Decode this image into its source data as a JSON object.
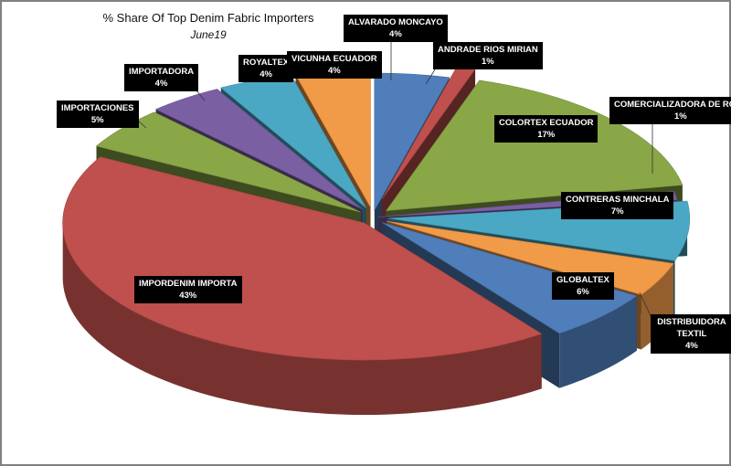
{
  "chart_data": {
    "type": "pie",
    "title": "% Share Of Top Denim Fabric Importers",
    "subtitle": "June19",
    "slices": [
      {
        "name": "ALVARADO MONCAYO",
        "value": 4,
        "label": "4%",
        "color": "#4f7ebb"
      },
      {
        "name": "ANDRADE RIOS MIRIAN",
        "value": 1,
        "label": "1%",
        "color": "#c0504d"
      },
      {
        "name": "COLORTEX ECUADOR",
        "value": 17,
        "label": "17%",
        "color": "#8aa748"
      },
      {
        "name": "COMERCIALIZADORA DE ROPA",
        "value": 1,
        "label": "1%",
        "color": "#7b5fa3"
      },
      {
        "name": "CONTRERAS MINCHALA",
        "value": 7,
        "label": "7%",
        "color": "#4aa8c4"
      },
      {
        "name": "DISTRIBUIDORA TEXTIL",
        "value": 4,
        "label": "4%",
        "color": "#f19a48"
      },
      {
        "name": "GLOBALTEX",
        "value": 6,
        "label": "6%",
        "color": "#4f7ebb"
      },
      {
        "name": "IMPORDENIM IMPORTA",
        "value": 43,
        "label": "43%",
        "color": "#c0504d"
      },
      {
        "name": "IMPORTACIONES",
        "value": 5,
        "label": "5%",
        "color": "#8aa748"
      },
      {
        "name": "IMPORTADORA",
        "value": 4,
        "label": "4%",
        "color": "#7b5fa3"
      },
      {
        "name": "ROYALTEX",
        "value": 4,
        "label": "4%",
        "color": "#4aa8c4"
      },
      {
        "name": "VICUNHA ECUADOR",
        "value": 4,
        "label": "4%",
        "color": "#f19a48"
      }
    ]
  }
}
